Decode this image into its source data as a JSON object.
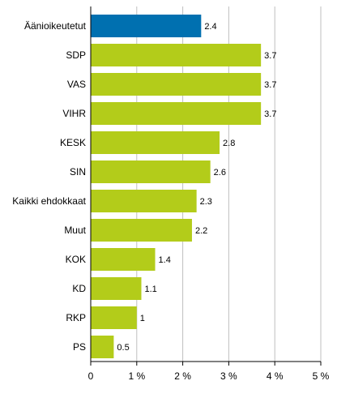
{
  "chart_data": {
    "type": "bar",
    "orientation": "horizontal",
    "title": "",
    "xlabel": "",
    "ylabel": "",
    "categories": [
      "Äänioikeutetut",
      "SDP",
      "VAS",
      "VIHR",
      "KESK",
      "SIN",
      "Kaikki ehdokkaat",
      "Muut",
      "KOK",
      "KD",
      "RKP",
      "PS"
    ],
    "values": [
      2.4,
      3.7,
      3.7,
      3.7,
      2.8,
      2.6,
      2.3,
      2.2,
      1.4,
      1.1,
      1,
      0.5
    ],
    "value_labels": [
      "2.4",
      "3.7",
      "3.7",
      "3.7",
      "2.8",
      "2.6",
      "2.3",
      "2.2",
      "1.4",
      "1.1",
      "1",
      "0.5"
    ],
    "xlim": [
      0,
      5
    ],
    "x_ticks": [
      0,
      1,
      2,
      3,
      4,
      5
    ],
    "x_tick_labels": [
      "0",
      "1 %",
      "2 %",
      "3 %",
      "4 %",
      "5 %"
    ],
    "grid": "vertical",
    "legend": "none",
    "colors": {
      "highlight": "#0070b0",
      "default": "#b3cc1a",
      "grid": "#bfbfbf",
      "axis": "#000000"
    },
    "highlight_index": 0
  }
}
